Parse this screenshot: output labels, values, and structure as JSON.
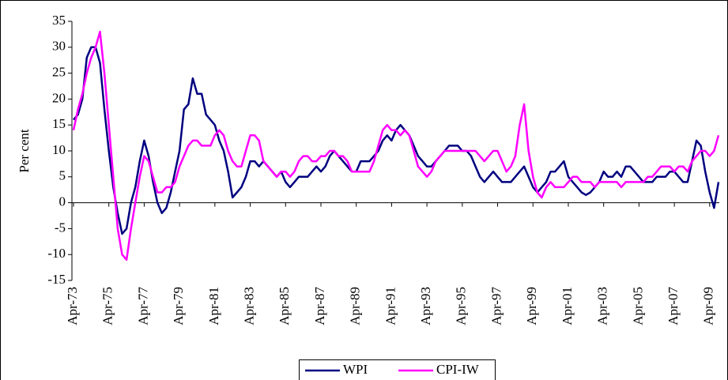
{
  "chart_data": {
    "type": "line",
    "ylabel": "Per cent",
    "categories": [
      "Apr-73",
      null,
      null,
      null,
      null,
      null,
      null,
      null,
      "Apr-75",
      null,
      null,
      null,
      null,
      null,
      null,
      null,
      "Apr-77",
      null,
      null,
      null,
      null,
      null,
      null,
      null,
      "Apr-79",
      null,
      null,
      null,
      null,
      null,
      null,
      null,
      "Apr-81",
      null,
      null,
      null,
      null,
      null,
      null,
      null,
      "Apr-83",
      null,
      null,
      null,
      null,
      null,
      null,
      null,
      "Apr-85",
      null,
      null,
      null,
      null,
      null,
      null,
      null,
      "Apr-87",
      null,
      null,
      null,
      null,
      null,
      null,
      null,
      "Apr-89",
      null,
      null,
      null,
      null,
      null,
      null,
      null,
      "Apr-91",
      null,
      null,
      null,
      null,
      null,
      null,
      null,
      "Apr-93",
      null,
      null,
      null,
      null,
      null,
      null,
      null,
      "Apr-95",
      null,
      null,
      null,
      null,
      null,
      null,
      null,
      "Apr-97",
      null,
      null,
      null,
      null,
      null,
      null,
      null,
      "Apr-99",
      null,
      null,
      null,
      null,
      null,
      null,
      null,
      "Apr-01",
      null,
      null,
      null,
      null,
      null,
      null,
      null,
      "Apr-03",
      null,
      null,
      null,
      null,
      null,
      null,
      null,
      "Apr-05",
      null,
      null,
      null,
      null,
      null,
      null,
      null,
      "Apr-07",
      null,
      null,
      null,
      null,
      null,
      null,
      null,
      "Apr-09",
      null,
      null
    ],
    "series": [
      {
        "name": "WPI",
        "color": "#000080",
        "values": [
          16,
          17,
          20,
          28,
          30,
          30,
          27,
          18,
          10,
          3,
          -2,
          -6,
          -5,
          0,
          3,
          8,
          12,
          9,
          4,
          0,
          -2,
          -1,
          2,
          6,
          10,
          18,
          19,
          24,
          21,
          21,
          17,
          16,
          15,
          12,
          10,
          6,
          1,
          2,
          3,
          5,
          8,
          8,
          7,
          8,
          7,
          6,
          5,
          6,
          4,
          3,
          4,
          5,
          5,
          5,
          6,
          7,
          6,
          7,
          9,
          10,
          9,
          8,
          7,
          6,
          6,
          8,
          8,
          8,
          9,
          10,
          12,
          13,
          12,
          14,
          15,
          14,
          13,
          11,
          9,
          8,
          7,
          7,
          8,
          9,
          10,
          11,
          11,
          11,
          10,
          10,
          9,
          7,
          5,
          4,
          5,
          6,
          5,
          4,
          4,
          4,
          5,
          6,
          7,
          5,
          3,
          2,
          3,
          4,
          6,
          6,
          7,
          8,
          5,
          4,
          3,
          2,
          1.5,
          2,
          3,
          4,
          6,
          5,
          5,
          6,
          5,
          7,
          7,
          6,
          5,
          4,
          4,
          4,
          5,
          5,
          5,
          6,
          6,
          5,
          4,
          4,
          8,
          12,
          11,
          6,
          2,
          -1,
          4
        ]
      },
      {
        "name": "CPI-IW",
        "color": "#ff00ff",
        "values": [
          14,
          18,
          21,
          25,
          28,
          30,
          33,
          25,
          15,
          5,
          -5,
          -10,
          -11,
          -5,
          0,
          5,
          9,
          8,
          5,
          2,
          2,
          3,
          3,
          4,
          7,
          9,
          11,
          12,
          12,
          11,
          11,
          11,
          13,
          14,
          13,
          10,
          8,
          7,
          7,
          10,
          13,
          13,
          12,
          8,
          7,
          6,
          5,
          6,
          6,
          5,
          6,
          8,
          9,
          9,
          8,
          8,
          9,
          9,
          10,
          10,
          9,
          9,
          8,
          6,
          6,
          6,
          6,
          6,
          8,
          11,
          14,
          15,
          14,
          14,
          13,
          14,
          13,
          10,
          7,
          6,
          5,
          6,
          8,
          9,
          10,
          10,
          10,
          10,
          10,
          10,
          10,
          10,
          9,
          8,
          9,
          10,
          10,
          8,
          6,
          7,
          9,
          15,
          19,
          10,
          5,
          2,
          1,
          3,
          4,
          3,
          3,
          3,
          4,
          5,
          5,
          4,
          4,
          4,
          3,
          4,
          4,
          4,
          4,
          4,
          3,
          4,
          4,
          4,
          4,
          4,
          5,
          5,
          6,
          7,
          7,
          7,
          6,
          7,
          7,
          6,
          8,
          9,
          10,
          10,
          9,
          10,
          13
        ]
      }
    ],
    "ylim": [
      -15,
      35
    ],
    "yticks": [
      -15,
      -10,
      -5,
      0,
      5,
      10,
      15,
      20,
      25,
      30,
      35
    ],
    "grid": false,
    "legend": "bottom"
  }
}
